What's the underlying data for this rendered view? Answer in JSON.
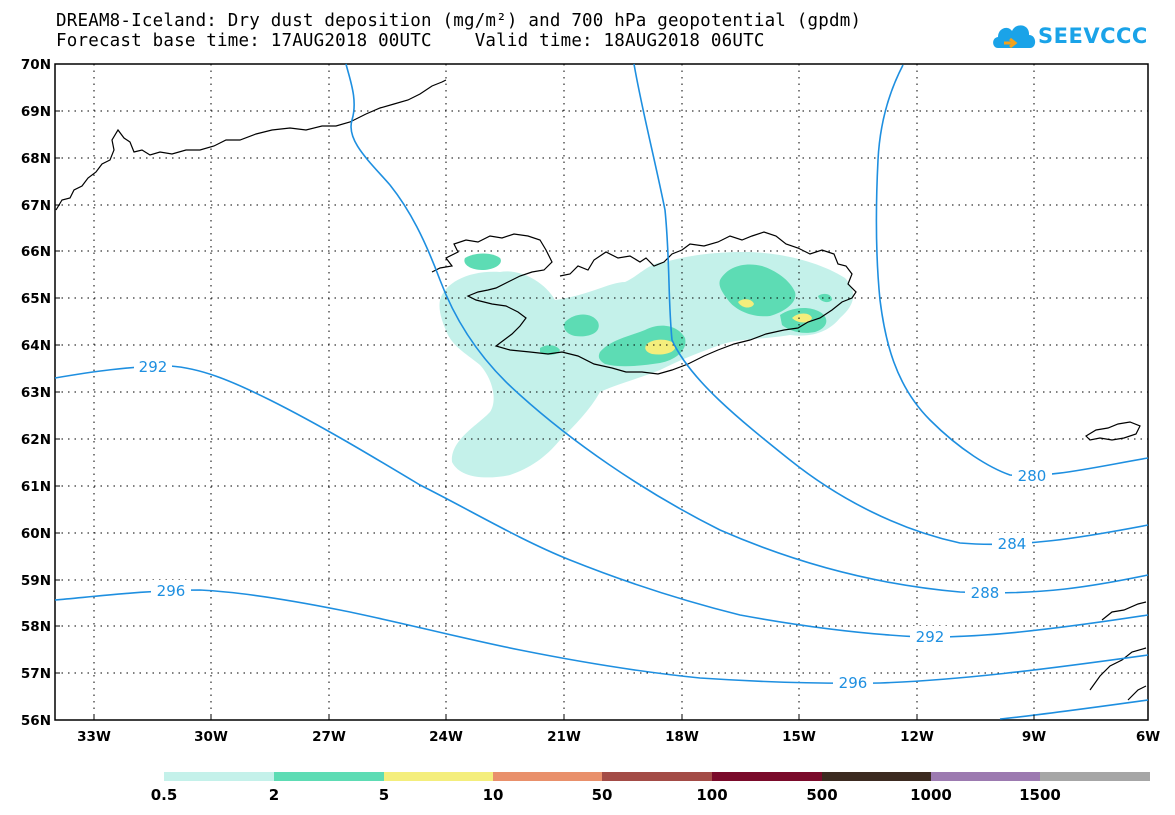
{
  "header": {
    "title_line1": "DREAM8-Iceland: Dry dust deposition (mg/m²) and 700 hPa geopotential (gpdm)",
    "title_line2": "Forecast base time: 17AUG2018 00UTC    Valid time: 18AUG2018 06UTC"
  },
  "logo": {
    "text": "SEEVCCC",
    "color": "#1aa3e8"
  },
  "map": {
    "lat_labels": [
      "70N",
      "69N",
      "68N",
      "67N",
      "66N",
      "65N",
      "64N",
      "63N",
      "62N",
      "61N",
      "60N",
      "59N",
      "58N",
      "57N",
      "56N"
    ],
    "lon_labels": [
      "33W",
      "30W",
      "27W",
      "24W",
      "21W",
      "18W",
      "15W",
      "12W",
      "9W",
      "6W"
    ],
    "contour_labels": [
      "292",
      "296",
      "280",
      "284",
      "288",
      "292",
      "296"
    ],
    "colors": {
      "contour": "#1e8fe0",
      "coast": "#000000",
      "level_0_5": "#c4f1ea",
      "level_2": "#5ddcb4",
      "level_5": "#f4ee7c"
    }
  },
  "legend": {
    "labels": [
      "0.5",
      "2",
      "5",
      "10",
      "50",
      "100",
      "500",
      "1000",
      "1500"
    ],
    "colors": [
      "#c4f1ea",
      "#5ddcb4",
      "#f4ee7c",
      "#e9906b",
      "#a34b46",
      "#7a0a2a",
      "#3c2a20",
      "#9c7ab0",
      "#a6a6a6"
    ]
  }
}
